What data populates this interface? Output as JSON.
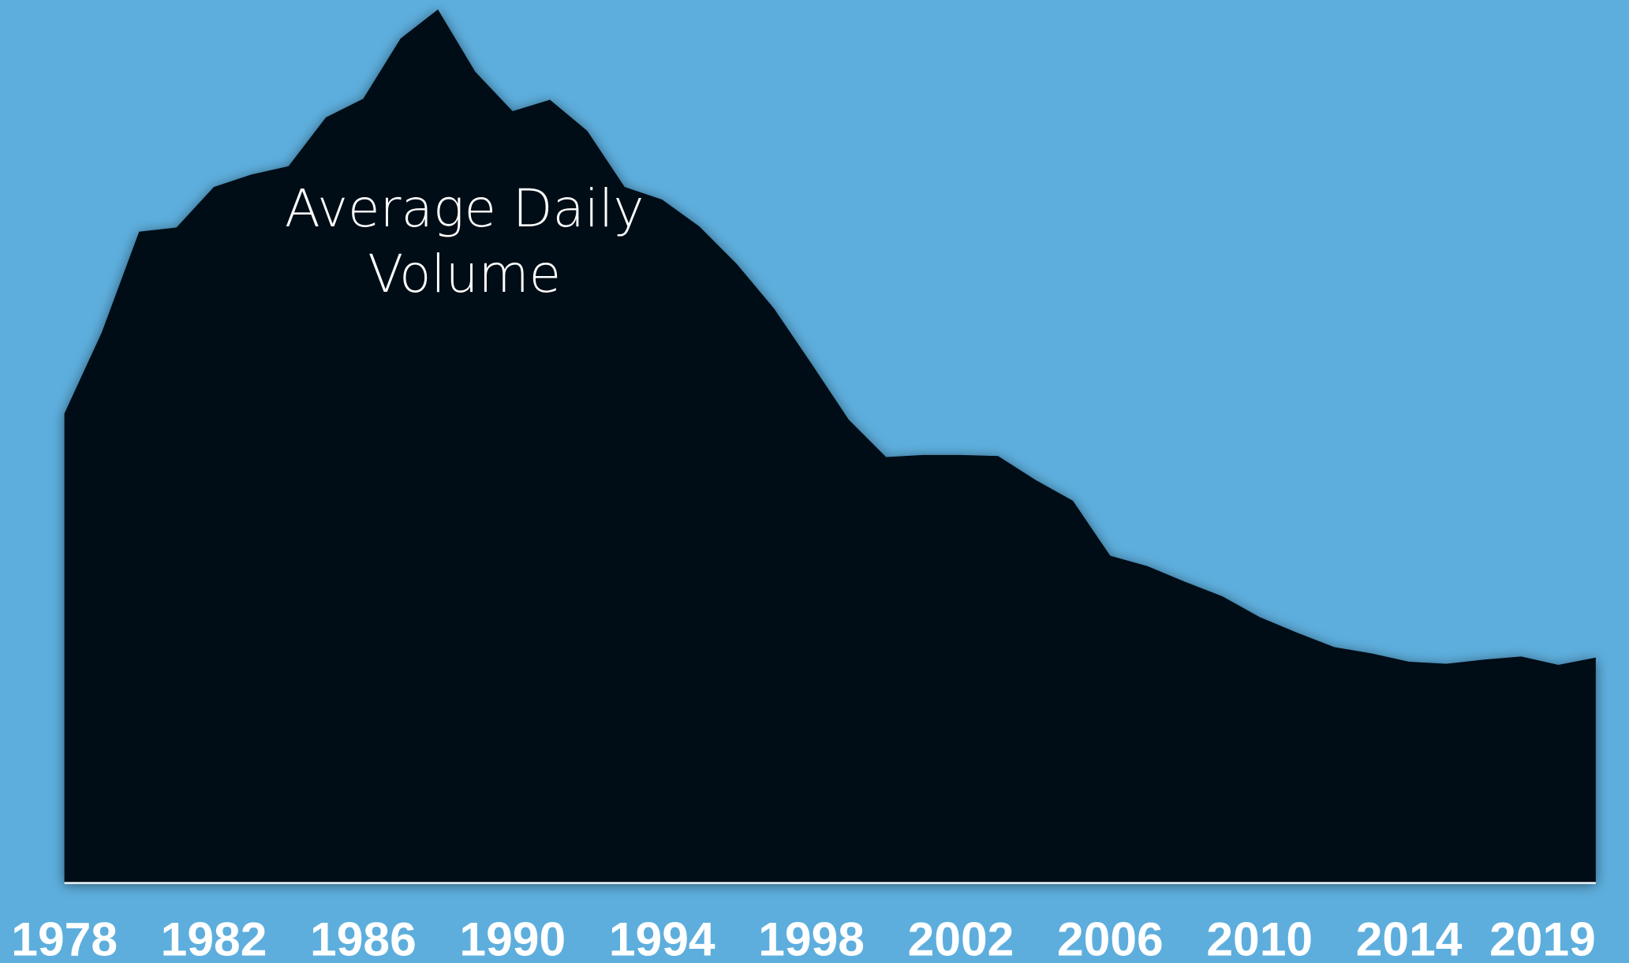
{
  "chart_data": {
    "type": "area",
    "annotation_lines": [
      "Average Daily",
      "Volume"
    ],
    "x": [
      1978,
      1979,
      1980,
      1981,
      1982,
      1983,
      1984,
      1985,
      1986,
      1987,
      1988,
      1989,
      1990,
      1991,
      1992,
      1993,
      1994,
      1995,
      1996,
      1997,
      1998,
      1999,
      2000,
      2001,
      2002,
      2003,
      2004,
      2005,
      2006,
      2007,
      2008,
      2009,
      2010,
      2011,
      2012,
      2013,
      2014,
      2015,
      2016,
      2017,
      2018,
      2019
    ],
    "values": [
      45.2,
      53,
      62.7,
      63.1,
      67,
      68.2,
      69,
      73.7,
      75.5,
      81.3,
      84.1,
      78.1,
      74.3,
      75.4,
      72.4,
      67,
      65.8,
      63.2,
      59.6,
      55.3,
      50,
      44.6,
      41,
      41.2,
      41.2,
      41.1,
      38.8,
      36.8,
      31.5,
      30.5,
      29,
      27.6,
      25.6,
      24.1,
      22.7,
      22.1,
      21.3,
      21.1,
      21.5,
      21.8,
      21,
      21.7
    ],
    "color": "#020812",
    "background": "#5daedd",
    "xlim": [
      1978,
      2019
    ],
    "ylim": [
      0,
      85
    ],
    "xticks": [
      1978,
      1982,
      1986,
      1990,
      1994,
      1998,
      2002,
      2006,
      2010,
      2014,
      2019
    ],
    "grid": false
  }
}
